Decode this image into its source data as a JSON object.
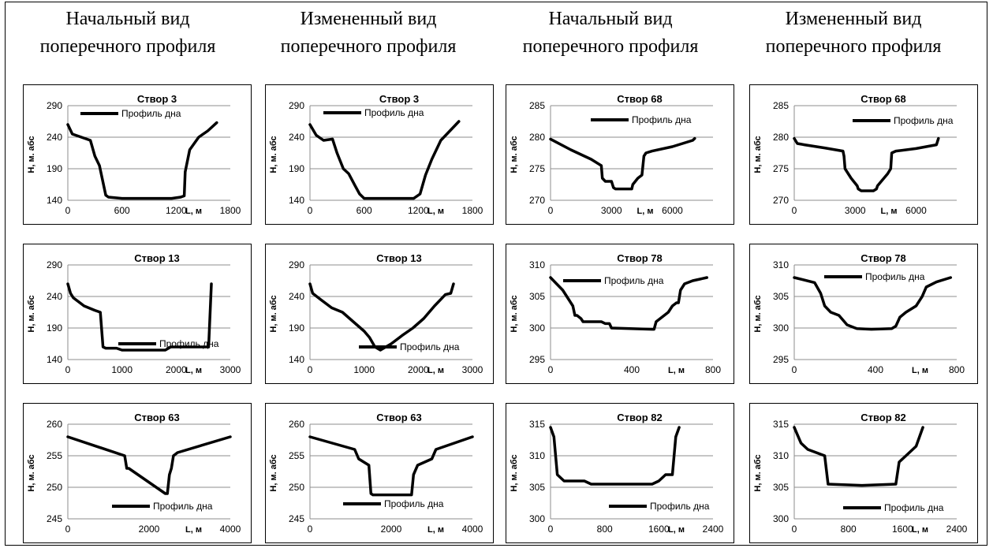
{
  "headers": [
    {
      "line1": "Начальный вид",
      "line2": "поперечного профиля"
    },
    {
      "line1": "Измененный вид",
      "line2": "поперечного профиля"
    },
    {
      "line1": "Начальный вид",
      "line2": "поперечного профиля"
    },
    {
      "line1": "Измененный вид",
      "line2": "поперечного профиля"
    }
  ],
  "chart_data": [
    {
      "type": "line",
      "title": "Створ 3",
      "xlabel": "L, м",
      "ylabel": "Н, м. абс",
      "xlim": [
        0,
        1800
      ],
      "ylim": [
        140,
        290
      ],
      "xticks": [
        0,
        600,
        1200,
        1800
      ],
      "xtick_labels": [
        "0",
        "600",
        "1200",
        "1800"
      ],
      "yticks": [
        140,
        190,
        240,
        290
      ],
      "legend_position": "top-left",
      "grid": "horizontal",
      "series": [
        {
          "name": "Профиль дна",
          "x": [
            0,
            50,
            150,
            250,
            300,
            350,
            420,
            450,
            600,
            900,
            1150,
            1250,
            1290,
            1300,
            1350,
            1450,
            1550,
            1650
          ],
          "y": [
            260,
            245,
            240,
            235,
            210,
            195,
            148,
            145,
            143,
            143,
            143,
            145,
            147,
            185,
            220,
            240,
            250,
            263
          ]
        }
      ]
    },
    {
      "type": "line",
      "title": "Створ 3",
      "xlabel": "L, м",
      "ylabel": "Н, м. абс",
      "xlim": [
        0,
        1800
      ],
      "ylim": [
        140,
        290
      ],
      "xticks": [
        0,
        600,
        1200,
        1800
      ],
      "xtick_labels": [
        "0",
        "600",
        "1200",
        "1800"
      ],
      "yticks": [
        140,
        190,
        240,
        290
      ],
      "legend_position": "top-right",
      "grid": "horizontal",
      "series": [
        {
          "name": "Профиль дна",
          "x": [
            0,
            70,
            150,
            250,
            300,
            370,
            430,
            500,
            550,
            600,
            700,
            1000,
            1150,
            1220,
            1280,
            1350,
            1450,
            1550,
            1650
          ],
          "y": [
            260,
            243,
            235,
            237,
            215,
            190,
            182,
            163,
            150,
            143,
            143,
            143,
            143,
            150,
            180,
            205,
            235,
            250,
            265
          ]
        }
      ]
    },
    {
      "type": "line",
      "title": "Створ 68",
      "xlabel": "L, м",
      "ylabel": "Н, м. абс",
      "xlim": [
        0,
        8000
      ],
      "ylim": [
        270,
        285
      ],
      "xticks": [
        0,
        3000,
        6000
      ],
      "xtick_labels": [
        "0",
        "3000",
        "6000"
      ],
      "yticks": [
        270,
        275,
        280,
        285
      ],
      "legend_position": "top-right",
      "grid": "horizontal",
      "series": [
        {
          "name": "Профиль дна",
          "x": [
            0,
            1000,
            2000,
            2500,
            2550,
            2700,
            3000,
            3100,
            3200,
            4000,
            4050,
            4300,
            4500,
            4600,
            4700,
            5000,
            6000,
            7000,
            7100
          ],
          "y": [
            279.7,
            278,
            276.5,
            275.5,
            273.5,
            273.0,
            273.0,
            272,
            271.8,
            271.8,
            272.5,
            273.5,
            274,
            277,
            277.5,
            277.8,
            278.5,
            279.5,
            279.8
          ]
        }
      ]
    },
    {
      "type": "line",
      "title": "Створ 68",
      "xlabel": "L, м",
      "ylabel": "Н, м. абс",
      "xlim": [
        0,
        8000
      ],
      "ylim": [
        270,
        285
      ],
      "xticks": [
        0,
        3000,
        6000
      ],
      "xtick_labels": [
        "0",
        "3000",
        "6000"
      ],
      "yticks": [
        270,
        275,
        280,
        285
      ],
      "legend_position": "top-right",
      "grid": "horizontal",
      "series": [
        {
          "name": "Профиль дна",
          "x": [
            0,
            150,
            500,
            1500,
            2400,
            2450,
            2500,
            2800,
            3100,
            3150,
            3300,
            3900,
            4050,
            4100,
            4600,
            4750,
            4800,
            5000,
            6000,
            7000,
            7100
          ],
          "y": [
            279.8,
            279,
            278.8,
            278.3,
            277.8,
            277,
            275,
            273.5,
            272.3,
            271.8,
            271.5,
            271.5,
            271.8,
            272.3,
            274.2,
            275,
            277.5,
            277.8,
            278.2,
            278.8,
            279.8
          ]
        }
      ]
    },
    {
      "type": "line",
      "title": "Створ 78",
      "xlabel": "L, м",
      "ylabel": "Н, м. абс",
      "xlim": [
        0,
        800
      ],
      "ylim": [
        295,
        310
      ],
      "xticks": [
        0,
        400,
        800
      ],
      "xtick_labels": [
        "0",
        "400",
        "800"
      ],
      "yticks": [
        295,
        300,
        305,
        310
      ],
      "legend_position": "bottom-center",
      "grid": "horizontal",
      "series": [
        {
          "name": "Профиль дна",
          "x": [
            0,
            30,
            60,
            90,
            110,
            120,
            130,
            150,
            160,
            250,
            270,
            290,
            300,
            500,
            510,
            520,
            580,
            600,
            620,
            630,
            640,
            660,
            700,
            770
          ],
          "y": [
            308,
            307,
            306,
            304.5,
            303.5,
            302,
            302,
            301.5,
            301,
            301,
            300.7,
            300.7,
            300,
            299.8,
            299.8,
            301,
            302.5,
            303.5,
            304,
            304,
            306,
            307,
            307.5,
            308
          ]
        }
      ]
    },
    {
      "type": "line",
      "title": "Створ 78",
      "xlabel": "L, м",
      "ylabel": "Н, м. абс",
      "xlim": [
        0,
        800
      ],
      "ylim": [
        295,
        310
      ],
      "xticks": [
        0,
        400,
        800
      ],
      "xtick_labels": [
        "0",
        "400",
        "800"
      ],
      "yticks": [
        295,
        300,
        305,
        310
      ],
      "legend_position": "bottom-right",
      "grid": "horizontal",
      "series": [
        {
          "name": "Профиль дна",
          "x": [
            0,
            100,
            130,
            150,
            180,
            220,
            260,
            300,
            310,
            380,
            480,
            500,
            520,
            550,
            600,
            630,
            650,
            700,
            770
          ],
          "y": [
            308,
            307.2,
            305.5,
            303.5,
            302.5,
            302,
            300.5,
            300,
            299.9,
            299.8,
            299.9,
            300.3,
            301.7,
            302.5,
            303.5,
            305,
            306.5,
            307.3,
            308
          ]
        }
      ]
    },
    {
      "type": "line",
      "title": "Створ 13",
      "xlabel": "L, м",
      "ylabel": "Н, м. абс",
      "xlim": [
        0,
        3000
      ],
      "ylim": [
        140,
        290
      ],
      "xticks": [
        0,
        1000,
        2000,
        3000
      ],
      "xtick_labels": [
        "0",
        "1000",
        "2000",
        "3000"
      ],
      "yticks": [
        140,
        190,
        240,
        290
      ],
      "legend_position": "top-left",
      "grid": "horizontal",
      "series": [
        {
          "name": "Профиль дна",
          "x": [
            0,
            50,
            100,
            300,
            500,
            600,
            650,
            700,
            900,
            1000,
            1500,
            1800,
            1900,
            2000,
            2500,
            2600,
            2650
          ],
          "y": [
            260,
            245,
            238,
            225,
            218,
            215,
            160,
            158,
            158,
            155,
            155,
            155,
            160,
            160,
            160,
            160,
            260
          ]
        }
      ]
    },
    {
      "type": "line",
      "title": "Створ 13",
      "xlabel": "L, м",
      "ylabel": "Н, м. абс",
      "xlim": [
        0,
        3000
      ],
      "ylim": [
        140,
        290
      ],
      "xticks": [
        0,
        1000,
        2000,
        3000
      ],
      "xtick_labels": [
        "0",
        "1000",
        "2000",
        "3000"
      ],
      "yticks": [
        140,
        190,
        240,
        290
      ],
      "legend_position": "top-right",
      "grid": "horizontal",
      "series": [
        {
          "name": "Профиль дна",
          "x": [
            0,
            50,
            200,
            400,
            600,
            800,
            1000,
            1100,
            1200,
            1300,
            1500,
            1700,
            1900,
            2100,
            2300,
            2500,
            2600,
            2650
          ],
          "y": [
            260,
            245,
            235,
            222,
            215,
            200,
            185,
            175,
            160,
            155,
            165,
            178,
            190,
            205,
            225,
            243,
            245,
            260
          ]
        }
      ]
    },
    {
      "type": "line",
      "title": "Створ 82",
      "xlabel": "L, м",
      "ylabel": "Н, м. абс",
      "xlim": [
        0,
        2400
      ],
      "ylim": [
        300,
        315
      ],
      "xticks": [
        0,
        800,
        1600,
        2400
      ],
      "xtick_labels": [
        "0",
        "800",
        "1600",
        "2400"
      ],
      "yticks": [
        300,
        305,
        310,
        315
      ],
      "legend_position": "bottom-center",
      "grid": "horizontal",
      "series": [
        {
          "name": "Профиль дна",
          "x": [
            0,
            50,
            100,
            200,
            500,
            600,
            1000,
            1500,
            1600,
            1700,
            1800,
            1850,
            1900
          ],
          "y": [
            314.5,
            313,
            307,
            306,
            306,
            305.5,
            305.5,
            305.5,
            306,
            307,
            307,
            313,
            314.5
          ]
        }
      ]
    },
    {
      "type": "line",
      "title": "Створ 82",
      "xlabel": "L, м",
      "ylabel": "Н, м. абс",
      "xlim": [
        0,
        2400
      ],
      "ylim": [
        300,
        315
      ],
      "xticks": [
        0,
        800,
        1600,
        2400
      ],
      "xtick_labels": [
        "0",
        "800",
        "1600",
        "2400"
      ],
      "yticks": [
        300,
        305,
        310,
        315
      ],
      "legend_position": "bottom-center",
      "grid": "horizontal",
      "series": [
        {
          "name": "Профиль дна",
          "x": [
            0,
            100,
            200,
            450,
            500,
            1000,
            1500,
            1550,
            1700,
            1800,
            1850,
            1900
          ],
          "y": [
            314.5,
            312,
            311,
            310,
            305.5,
            305.3,
            305.5,
            309,
            310.5,
            311.5,
            313,
            314.5
          ]
        }
      ]
    },
    {
      "type": "line",
      "title": "Створ 63",
      "xlabel": "L, м",
      "ylabel": "Н, м. абс",
      "xlim": [
        0,
        4000
      ],
      "ylim": [
        245,
        260
      ],
      "xticks": [
        0,
        2000,
        4000
      ],
      "xtick_labels": [
        "0",
        "2000",
        "4000"
      ],
      "yticks": [
        245,
        250,
        255,
        260
      ],
      "legend_position": "bottom-center",
      "grid": "horizontal",
      "series": [
        {
          "name": "Профиль дна",
          "x": [
            0,
            1400,
            1450,
            1500,
            2400,
            2450,
            2500,
            2550,
            2600,
            2700,
            4000
          ],
          "y": [
            258,
            255,
            253,
            253,
            249,
            249,
            252,
            253,
            255,
            255.5,
            258
          ]
        }
      ]
    },
    {
      "type": "line",
      "title": "Створ 63",
      "xlabel": "L, м",
      "ylabel": "Н, м. абс",
      "xlim": [
        0,
        4000
      ],
      "ylim": [
        245,
        260
      ],
      "xticks": [
        0,
        2000,
        4000
      ],
      "xtick_labels": [
        "0",
        "2000",
        "4000"
      ],
      "yticks": [
        245,
        250,
        255,
        260
      ],
      "legend_position": "bottom-right",
      "grid": "horizontal",
      "series": [
        {
          "name": "Профиль дна",
          "x": [
            0,
            1100,
            1200,
            1450,
            1500,
            1550,
            2500,
            2550,
            2650,
            3000,
            3100,
            4000
          ],
          "y": [
            258,
            256,
            254.5,
            253.5,
            249,
            248.8,
            248.8,
            252,
            253.5,
            254.5,
            256,
            258
          ]
        }
      ]
    }
  ]
}
